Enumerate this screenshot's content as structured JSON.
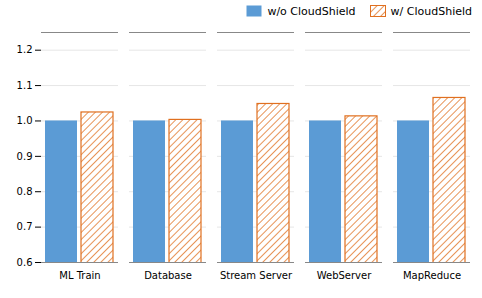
{
  "chart_data": {
    "type": "bar",
    "categories": [
      "ML Train",
      "Database",
      "Stream Server",
      "WebServer",
      "MapReduce"
    ],
    "series": [
      {
        "name": "w/o CloudShield",
        "color": "#5B9BD5",
        "values": [
          1.0,
          1.0,
          1.0,
          1.0,
          1.0
        ]
      },
      {
        "name": "w/ CloudShield",
        "color": "#E07020",
        "values": [
          1.024,
          1.003,
          1.048,
          1.013,
          1.065
        ]
      }
    ],
    "ylim": [
      0.6,
      1.25
    ],
    "yticks": [
      0.6,
      0.7,
      0.8,
      0.9,
      {
        "value": 1.0,
        "label": "1.0"
      },
      1.1,
      1.2
    ],
    "grid": true,
    "legend": "upper right"
  }
}
